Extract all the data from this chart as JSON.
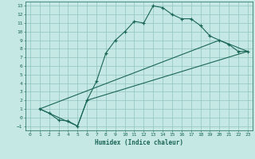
{
  "title": "",
  "xlabel": "Humidex (Indice chaleur)",
  "bg_color": "#c5e8e5",
  "grid_color": "#90c4be",
  "line_color": "#1a6655",
  "xlim": [
    -0.5,
    23.5
  ],
  "ylim": [
    -1.5,
    13.5
  ],
  "xticks": [
    0,
    1,
    2,
    3,
    4,
    5,
    6,
    7,
    8,
    9,
    10,
    11,
    12,
    13,
    14,
    15,
    16,
    17,
    18,
    19,
    20,
    21,
    22,
    23
  ],
  "yticks": [
    -1,
    0,
    1,
    2,
    3,
    4,
    5,
    6,
    7,
    8,
    9,
    10,
    11,
    12,
    13
  ],
  "line1_x": [
    1,
    2,
    3,
    4,
    5,
    6,
    7,
    8,
    9,
    10,
    11,
    12,
    13,
    14,
    15,
    16,
    17,
    18,
    19,
    20,
    21,
    22,
    23
  ],
  "line1_y": [
    1,
    0.5,
    -0.3,
    -0.4,
    -1.0,
    2.0,
    4.2,
    7.5,
    9.0,
    10.0,
    11.2,
    11.0,
    13.0,
    12.8,
    12.0,
    11.5,
    11.5,
    10.7,
    9.5,
    9.0,
    8.5,
    7.7,
    7.7
  ],
  "line2_x": [
    1,
    20,
    23
  ],
  "line2_y": [
    1,
    9.0,
    7.7
  ],
  "line3_x": [
    1,
    5,
    6,
    23
  ],
  "line3_y": [
    1,
    -1.0,
    2.0,
    7.7
  ]
}
